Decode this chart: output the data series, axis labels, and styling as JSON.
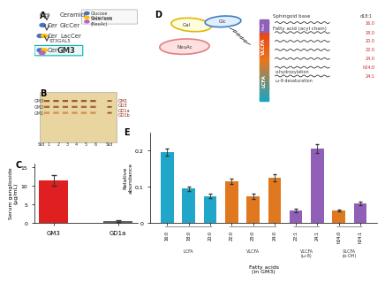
{
  "panel_c": {
    "categories": [
      "GM3",
      "GD1a"
    ],
    "values": [
      11.5,
      0.5
    ],
    "errors": [
      1.5,
      0.2
    ],
    "colors": [
      "#e02020",
      "#606060"
    ],
    "ylabel": "Serum ganglioside\n(μg/mL)",
    "ylim": [
      0,
      16
    ],
    "yticks": [
      0,
      5,
      10,
      15
    ],
    "label": "C"
  },
  "panel_e": {
    "categories": [
      "16:0",
      "18:0",
      "20:0",
      "22:0",
      "23:0",
      "24:0",
      "22:1",
      "24:1",
      "h24:0",
      "h24:1"
    ],
    "values": [
      0.195,
      0.095,
      0.075,
      0.115,
      0.075,
      0.125,
      0.035,
      0.205,
      0.035,
      0.055
    ],
    "errors": [
      0.01,
      0.007,
      0.006,
      0.008,
      0.007,
      0.009,
      0.004,
      0.012,
      0.003,
      0.005
    ],
    "colors": [
      "#1fa6c8",
      "#1fa6c8",
      "#1fa6c8",
      "#e07820",
      "#e07820",
      "#e07820",
      "#9060b8",
      "#9060b8",
      "#e07820",
      "#9060b8"
    ],
    "ylabel": "Relative\nabundance",
    "ylim": [
      0,
      0.25
    ],
    "yticks": [
      0,
      0.1,
      0.2
    ],
    "xlabel": "Fatty acids\n(in GM3)",
    "label": "E"
  },
  "bg_color": "#ffffff"
}
